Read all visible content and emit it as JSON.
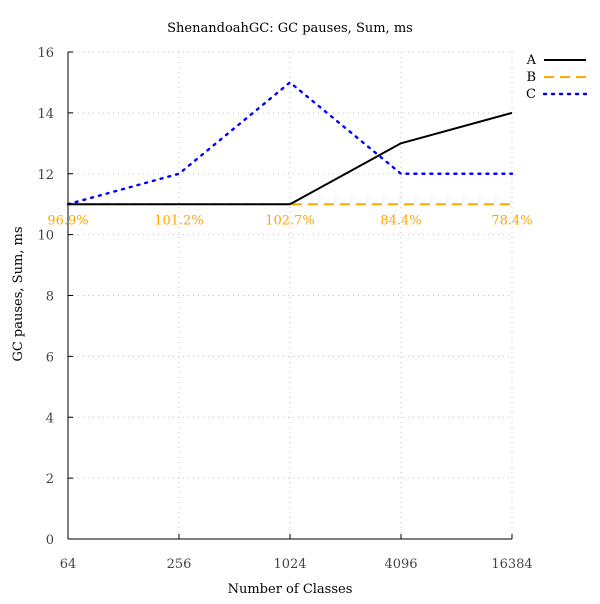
{
  "chart_data": {
    "type": "line",
    "title": "ShenandoahGC: GC pauses, Sum, ms",
    "xlabel": "Number of Classes",
    "ylabel": "GC pauses, Sum, ms",
    "x_scale": "log2",
    "x": [
      64,
      256,
      1024,
      4096,
      16384
    ],
    "x_tick_labels": [
      "64",
      "256",
      "1024",
      "4096",
      "16384"
    ],
    "xlim": [
      64,
      16384
    ],
    "ylim": [
      0,
      16
    ],
    "y_ticks": [
      0,
      2,
      4,
      6,
      8,
      10,
      12,
      14,
      16
    ],
    "y_tick_labels": [
      "0",
      "2",
      "4",
      "6",
      "8",
      "10",
      "12",
      "14",
      "16"
    ],
    "grid": true,
    "legend_position": "top-right",
    "series": [
      {
        "name": "A",
        "color": "#000000",
        "style": "solid",
        "values": [
          11,
          11,
          11,
          13,
          14
        ]
      },
      {
        "name": "B",
        "color": "#ffa500",
        "style": "dashed",
        "values": [
          11,
          11,
          11,
          11,
          11
        ]
      },
      {
        "name": "C",
        "color": "#0000ff",
        "style": "dotted",
        "values": [
          11,
          12,
          15,
          12,
          12
        ]
      }
    ],
    "annotations": {
      "color": "#ffa500",
      "y": 10.5,
      "items": [
        {
          "x": 64,
          "text": "96.9%"
        },
        {
          "x": 256,
          "text": "101.2%"
        },
        {
          "x": 1024,
          "text": "102.7%"
        },
        {
          "x": 4096,
          "text": "84.4%"
        },
        {
          "x": 16384,
          "text": "78.4%"
        }
      ]
    }
  }
}
